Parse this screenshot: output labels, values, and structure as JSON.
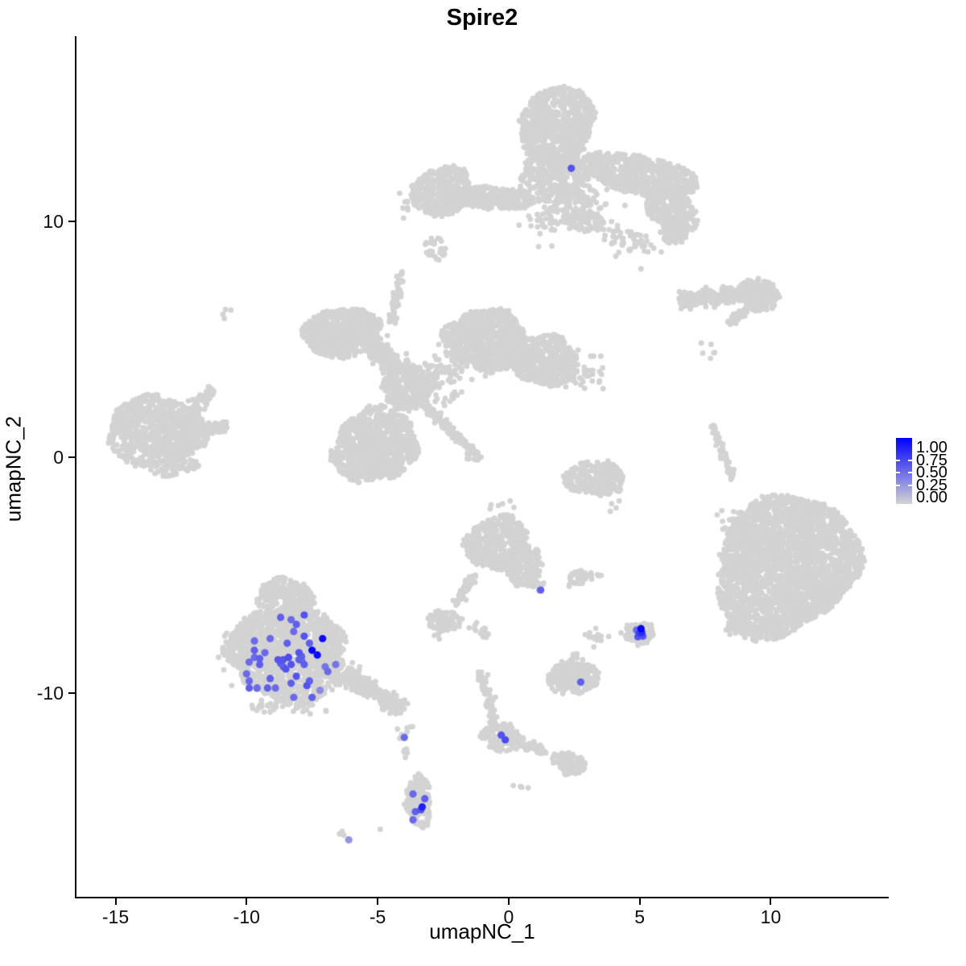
{
  "chart_data": {
    "type": "scatter",
    "title": "Spire2",
    "xlabel": "umapNC_1",
    "ylabel": "umapNC_2",
    "xlim": [
      -16.49,
      14.47
    ],
    "ylim": [
      -18.7,
      17.88
    ],
    "grid": false,
    "x_tick_values": [
      -15,
      -10,
      -5,
      0,
      5,
      10
    ],
    "x_tick_labels": [
      "-15",
      "-10",
      "-5",
      "0",
      "5",
      "10"
    ],
    "y_tick_values": [
      10,
      0,
      -10
    ],
    "y_tick_labels": [
      "10",
      "0",
      "-10"
    ],
    "colors": {
      "gray_point": "#D3D3D3",
      "low": "#D3D3D3",
      "high": "#0000FF",
      "axis": "#000000"
    },
    "legend": {
      "tick_labels": [
        "1.00",
        "0.75",
        "0.50",
        "0.25",
        "0.00"
      ],
      "tick_values": [
        1.0,
        0.75,
        0.5,
        0.25,
        0.0
      ]
    },
    "background_clusters": [
      {
        "kind": "disk",
        "cx": 1.85,
        "cy": 14.1,
        "rx": 1.5,
        "ry": 1.6,
        "rot": -12,
        "n": 750
      },
      {
        "kind": "disk",
        "cx": 1.7,
        "cy": 12.0,
        "rx": 1.35,
        "ry": 1.15,
        "rot": 0,
        "n": 300
      },
      {
        "kind": "disk",
        "cx": -2.55,
        "cy": 11.3,
        "rx": 1.2,
        "ry": 1.0,
        "rot": 12,
        "n": 380
      },
      {
        "kind": "disk",
        "cx": -0.6,
        "cy": 11.0,
        "rx": 1.55,
        "ry": 0.5,
        "rot": -4,
        "n": 240
      },
      {
        "kind": "disk",
        "cx": 5.0,
        "cy": 12.0,
        "rx": 2.2,
        "ry": 0.85,
        "rot": -14,
        "n": 620
      },
      {
        "kind": "disk",
        "cx": 6.2,
        "cy": 10.6,
        "rx": 1.1,
        "ry": 0.85,
        "rot": -48,
        "n": 260
      },
      {
        "kind": "disk",
        "cx": 6.3,
        "cy": 9.55,
        "rx": 0.55,
        "ry": 0.5,
        "rot": 0,
        "n": 80
      },
      {
        "kind": "disk",
        "cx": 2.85,
        "cy": 10.05,
        "rx": 0.8,
        "ry": 0.45,
        "rot": -12,
        "n": 100
      },
      {
        "kind": "gauss",
        "cx": 2.6,
        "cy": 10.9,
        "rx": 1.2,
        "ry": 0.6,
        "rot": 0,
        "n": 90
      },
      {
        "kind": "gauss",
        "cx": 4.6,
        "cy": 9.2,
        "rx": 0.9,
        "ry": 0.5,
        "rot": -20,
        "n": 55
      },
      {
        "kind": "gauss",
        "cx": 1.5,
        "cy": 10.1,
        "rx": 0.6,
        "ry": 0.7,
        "rot": 0,
        "n": 40
      },
      {
        "kind": "disk",
        "cx": -2.8,
        "cy": 8.85,
        "rx": 0.4,
        "ry": 0.5,
        "rot": 0,
        "n": 26
      },
      {
        "kind": "gauss",
        "cx": -3.9,
        "cy": 10.9,
        "rx": 0.3,
        "ry": 0.5,
        "rot": 0,
        "n": 8
      },
      {
        "kind": "disk",
        "cx": -6.35,
        "cy": 5.3,
        "rx": 1.55,
        "ry": 1.0,
        "rot": 14,
        "n": 650
      },
      {
        "kind": "line",
        "x1": -5.4,
        "y1": 4.9,
        "x2": -4.1,
        "y2": 3.7,
        "w": 0.4,
        "n": 220
      },
      {
        "kind": "disk",
        "cx": -3.85,
        "cy": 2.95,
        "rx": 0.95,
        "ry": 0.95,
        "rot": 0,
        "n": 280
      },
      {
        "kind": "disk",
        "cx": -5.1,
        "cy": 0.5,
        "rx": 1.65,
        "ry": 1.55,
        "rot": 0,
        "n": 850
      },
      {
        "kind": "disk",
        "cx": -0.9,
        "cy": 4.95,
        "rx": 1.55,
        "ry": 1.35,
        "rot": -18,
        "n": 850
      },
      {
        "kind": "disk",
        "cx": 1.4,
        "cy": 4.1,
        "rx": 1.35,
        "ry": 1.0,
        "rot": -12,
        "n": 500
      },
      {
        "kind": "gauss",
        "cx": -2.6,
        "cy": 3.4,
        "rx": 1.0,
        "ry": 0.9,
        "rot": 0,
        "n": 90
      },
      {
        "kind": "line",
        "x1": -3.3,
        "y1": 2.25,
        "x2": -1.45,
        "y2": 0.35,
        "w": 0.18,
        "n": 130
      },
      {
        "kind": "disk",
        "cx": -1.35,
        "cy": 0.1,
        "rx": 0.3,
        "ry": 0.28,
        "rot": 0,
        "n": 25
      },
      {
        "kind": "line",
        "x1": -4.45,
        "y1": 5.7,
        "x2": -4.1,
        "y2": 7.9,
        "w": 0.16,
        "n": 55
      },
      {
        "kind": "gauss",
        "cx": 3.0,
        "cy": 3.6,
        "rx": 0.7,
        "ry": 0.6,
        "rot": 0,
        "n": 35
      },
      {
        "kind": "disk",
        "cx": -13.45,
        "cy": 1.1,
        "rx": 1.8,
        "ry": 1.55,
        "rot": 0,
        "n": 780
      },
      {
        "kind": "line",
        "x1": -12.3,
        "y1": 1.15,
        "x2": -10.75,
        "y2": 1.3,
        "w": 0.5,
        "n": 130,
        "taper": true
      },
      {
        "kind": "line",
        "x1": -12.1,
        "y1": 1.9,
        "x2": -11.3,
        "y2": 2.9,
        "w": 0.28,
        "n": 70
      },
      {
        "kind": "disk",
        "cx": -12.8,
        "cy": -0.4,
        "rx": 0.85,
        "ry": 0.4,
        "rot": 8,
        "n": 80
      },
      {
        "kind": "gauss",
        "cx": -10.9,
        "cy": 6.0,
        "rx": 0.25,
        "ry": 0.3,
        "rot": 0,
        "n": 3
      },
      {
        "kind": "line",
        "x1": 6.5,
        "y1": 6.6,
        "x2": 8.85,
        "y2": 6.95,
        "w": 0.32,
        "n": 230
      },
      {
        "kind": "disk",
        "cx": 9.55,
        "cy": 6.9,
        "rx": 0.8,
        "ry": 0.65,
        "rot": -15,
        "n": 200
      },
      {
        "kind": "line",
        "x1": 8.35,
        "y1": 5.75,
        "x2": 9.2,
        "y2": 6.35,
        "w": 0.2,
        "n": 45
      },
      {
        "kind": "gauss",
        "cx": 7.7,
        "cy": 4.6,
        "rx": 0.35,
        "ry": 0.4,
        "rot": 0,
        "n": 5
      },
      {
        "kind": "line",
        "x1": 7.75,
        "y1": 1.4,
        "x2": 8.55,
        "y2": -1.0,
        "w": 0.15,
        "n": 55
      },
      {
        "kind": "gauss",
        "cx": 8.6,
        "cy": -2.7,
        "rx": 0.6,
        "ry": 1.0,
        "rot": 0,
        "n": 10
      },
      {
        "kind": "disk",
        "cx": 10.6,
        "cy": -4.55,
        "rx": 2.75,
        "ry": 2.9,
        "rot": 0,
        "n": 2500
      },
      {
        "kind": "line",
        "x1": 8.4,
        "y1": -7.0,
        "x2": 9.6,
        "y2": -7.5,
        "w": 0.35,
        "n": 110
      },
      {
        "kind": "gauss",
        "cx": 8.4,
        "cy": -4.3,
        "rx": 0.45,
        "ry": 1.6,
        "rot": 0,
        "n": 22
      },
      {
        "kind": "disk",
        "cx": -0.45,
        "cy": -3.65,
        "rx": 1.2,
        "ry": 1.15,
        "rot": 0,
        "n": 420
      },
      {
        "kind": "disk",
        "cx": 0.55,
        "cy": -4.6,
        "rx": 0.8,
        "ry": 0.85,
        "rot": 0,
        "n": 160
      },
      {
        "kind": "line",
        "x1": -0.1,
        "y1": -3.1,
        "x2": 0.6,
        "y2": -3.3,
        "w": 0.2,
        "n": 35
      },
      {
        "kind": "line",
        "x1": 0.7,
        "y1": -4.9,
        "x2": 1.18,
        "y2": -5.65,
        "w": 0.22,
        "n": 45
      },
      {
        "kind": "line",
        "x1": -1.35,
        "y1": -4.95,
        "x2": -2.0,
        "y2": -6.3,
        "w": 0.2,
        "n": 45
      },
      {
        "kind": "disk",
        "cx": -2.45,
        "cy": -6.95,
        "rx": 0.65,
        "ry": 0.45,
        "rot": -10,
        "n": 110
      },
      {
        "kind": "gauss",
        "cx": -2.75,
        "cy": -7.6,
        "rx": 0.15,
        "ry": 0.15,
        "rot": 0,
        "n": 4
      },
      {
        "kind": "gauss",
        "cx": -1.1,
        "cy": -7.2,
        "rx": 0.35,
        "ry": 0.15,
        "rot": 0,
        "n": 5
      },
      {
        "kind": "disk",
        "cx": -0.95,
        "cy": -7.5,
        "rx": 0.18,
        "ry": 0.25,
        "rot": 0,
        "n": 10
      },
      {
        "kind": "disk",
        "cx": 3.3,
        "cy": -0.9,
        "rx": 1.15,
        "ry": 0.75,
        "rot": -10,
        "n": 230
      },
      {
        "kind": "gauss",
        "cx": 4.0,
        "cy": -2.1,
        "rx": 0.2,
        "ry": 0.2,
        "rot": 0,
        "n": 3
      },
      {
        "kind": "disk",
        "cx": 2.8,
        "cy": -5.1,
        "rx": 0.5,
        "ry": 0.32,
        "rot": 0,
        "n": 40
      },
      {
        "kind": "gauss",
        "cx": 2.3,
        "cy": -5.35,
        "rx": 0.15,
        "ry": 0.15,
        "rot": 0,
        "n": 3
      },
      {
        "kind": "gauss",
        "cx": 3.45,
        "cy": -5.0,
        "rx": 0.15,
        "ry": 0.15,
        "rot": 0,
        "n": 3
      },
      {
        "kind": "disk",
        "cx": 5.0,
        "cy": -7.45,
        "rx": 0.5,
        "ry": 0.55,
        "rot": 0,
        "n": 70
      },
      {
        "kind": "gauss",
        "cx": 4.5,
        "cy": -7.55,
        "rx": 0.25,
        "ry": 0.18,
        "rot": 0,
        "n": 12
      },
      {
        "kind": "gauss",
        "cx": 3.35,
        "cy": -7.6,
        "rx": 0.4,
        "ry": 0.35,
        "rot": 0,
        "n": 16
      },
      {
        "kind": "disk",
        "cx": 2.45,
        "cy": -9.35,
        "rx": 0.95,
        "ry": 0.75,
        "rot": -10,
        "n": 240
      },
      {
        "kind": "gauss",
        "cx": 2.6,
        "cy": -8.5,
        "rx": 0.3,
        "ry": 0.2,
        "rot": 0,
        "n": 6
      },
      {
        "kind": "disk",
        "cx": -0.3,
        "cy": -11.9,
        "rx": 0.75,
        "ry": 0.6,
        "rot": 15,
        "n": 140
      },
      {
        "kind": "line",
        "x1": -0.55,
        "y1": -11.3,
        "x2": -1.0,
        "y2": -9.45,
        "w": 0.17,
        "n": 55
      },
      {
        "kind": "disk",
        "cx": -1.0,
        "cy": -9.3,
        "rx": 0.24,
        "ry": 0.24,
        "rot": 0,
        "n": 15
      },
      {
        "kind": "line",
        "x1": 0.2,
        "y1": -12.05,
        "x2": 1.45,
        "y2": -12.5,
        "w": 0.2,
        "n": 55
      },
      {
        "kind": "disk",
        "cx": 2.3,
        "cy": -13.0,
        "rx": 0.65,
        "ry": 0.48,
        "rot": -28,
        "n": 90
      },
      {
        "kind": "gauss",
        "cx": -4.05,
        "cy": -11.6,
        "rx": 0.3,
        "ry": 0.3,
        "rot": 0,
        "n": 8
      },
      {
        "kind": "gauss",
        "cx": -3.95,
        "cy": -12.6,
        "rx": 0.15,
        "ry": 0.5,
        "rot": 0,
        "n": 5
      },
      {
        "kind": "disk",
        "cx": -3.45,
        "cy": -14.6,
        "rx": 0.52,
        "ry": 1.1,
        "rot": 8,
        "n": 170
      },
      {
        "kind": "gauss",
        "cx": 0.55,
        "cy": -14.05,
        "rx": 0.25,
        "ry": 0.2,
        "rot": 0,
        "n": 4
      },
      {
        "kind": "gauss",
        "cx": -6.25,
        "cy": -16.05,
        "rx": 0.15,
        "ry": 0.18,
        "rot": 0,
        "n": 3
      },
      {
        "kind": "gauss",
        "cx": -0.4,
        "cy": -2.0,
        "rx": 0.8,
        "ry": 0.6,
        "rot": 0,
        "n": 8
      },
      {
        "kind": "disk",
        "cx": -8.4,
        "cy": -8.35,
        "rx": 2.45,
        "ry": 1.9,
        "rot": 4,
        "n": 1500
      },
      {
        "kind": "disk",
        "cx": -8.55,
        "cy": -5.95,
        "rx": 1.05,
        "ry": 0.8,
        "rot": -8,
        "n": 280
      },
      {
        "kind": "line",
        "x1": -6.3,
        "y1": -9.2,
        "x2": -4.3,
        "y2": -10.5,
        "w": 0.5,
        "n": 300,
        "taper": true
      },
      {
        "kind": "disk",
        "cx": -4.35,
        "cy": -10.5,
        "rx": 0.55,
        "ry": 0.42,
        "rot": -20,
        "n": 70
      },
      {
        "kind": "gauss",
        "cx": -8.5,
        "cy": -10.6,
        "rx": 1.5,
        "ry": 0.3,
        "rot": 0,
        "n": 40
      },
      {
        "kind": "gauss",
        "cx": -10.6,
        "cy": -8.3,
        "rx": 0.3,
        "ry": 0.8,
        "rot": 0,
        "n": 15
      }
    ],
    "extra_gray_points": [
      [
        -10.6,
        6.25
      ],
      [
        5.05,
        8.0
      ],
      [
        8.45,
        5.65
      ],
      [
        7.35,
        4.85
      ],
      [
        4.1,
        -2.15
      ],
      [
        -4.9,
        -15.8
      ]
    ],
    "expression_points": [
      [
        2.39,
        12.27,
        0.6
      ],
      [
        1.22,
        -5.64,
        0.55
      ],
      [
        4.88,
        -7.34,
        0.5
      ],
      [
        5.08,
        -7.44,
        0.8
      ],
      [
        4.98,
        -7.48,
        0.7
      ],
      [
        5.12,
        -7.6,
        0.6
      ],
      [
        4.93,
        -7.62,
        0.6
      ],
      [
        5.05,
        -7.28,
        1.0
      ],
      [
        2.75,
        -9.55,
        0.55
      ],
      [
        -0.28,
        -11.8,
        0.6
      ],
      [
        -0.13,
        -12.0,
        0.65
      ],
      [
        -3.98,
        -11.9,
        0.5
      ],
      [
        -3.65,
        -14.3,
        0.5
      ],
      [
        -3.2,
        -14.5,
        0.55
      ],
      [
        -3.35,
        -14.97,
        0.6
      ],
      [
        -3.3,
        -14.85,
        0.85
      ],
      [
        -3.56,
        -15.05,
        0.55
      ],
      [
        -3.65,
        -15.4,
        0.5
      ],
      [
        -6.1,
        -16.25,
        0.3
      ],
      [
        -8.7,
        -6.8,
        0.55
      ],
      [
        -7.8,
        -6.7,
        0.6
      ],
      [
        -8.3,
        -6.9,
        0.5
      ],
      [
        -8.1,
        -7.1,
        0.55
      ],
      [
        -8.2,
        -7.4,
        0.5
      ],
      [
        -7.8,
        -7.6,
        0.6
      ],
      [
        -7.1,
        -7.7,
        0.95
      ],
      [
        -7.6,
        -7.9,
        0.55
      ],
      [
        -7.5,
        -8.2,
        1.0
      ],
      [
        -7.3,
        -8.4,
        0.95
      ],
      [
        -9.7,
        -7.8,
        0.5
      ],
      [
        -9.7,
        -8.2,
        0.55
      ],
      [
        -9.1,
        -7.7,
        0.5
      ],
      [
        -8.0,
        -8.3,
        0.6
      ],
      [
        -7.9,
        -8.45,
        0.55
      ],
      [
        -9.7,
        -8.5,
        0.5
      ],
      [
        -9.5,
        -8.55,
        0.55
      ],
      [
        -9.9,
        -8.7,
        0.5
      ],
      [
        -9.5,
        -8.8,
        0.55
      ],
      [
        -8.8,
        -8.6,
        0.6
      ],
      [
        -8.7,
        -8.75,
        0.55
      ],
      [
        -8.6,
        -8.6,
        0.6
      ],
      [
        -8.4,
        -8.5,
        0.65
      ],
      [
        -8.3,
        -8.8,
        0.6
      ],
      [
        -8.6,
        -8.9,
        0.55
      ],
      [
        -8.5,
        -9.0,
        0.6
      ],
      [
        -8.0,
        -8.6,
        0.55
      ],
      [
        -7.9,
        -8.62,
        0.5
      ],
      [
        -7.8,
        -8.8,
        0.55
      ],
      [
        -10.0,
        -9.2,
        0.5
      ],
      [
        -9.1,
        -9.4,
        0.55
      ],
      [
        -8.1,
        -9.3,
        0.6
      ],
      [
        -7.6,
        -9.5,
        0.55
      ],
      [
        -9.9,
        -9.5,
        0.5
      ],
      [
        -9.9,
        -9.8,
        0.55
      ],
      [
        -9.6,
        -9.8,
        0.5
      ],
      [
        -9.2,
        -9.8,
        0.55
      ],
      [
        -8.9,
        -9.8,
        0.5
      ],
      [
        -8.3,
        -9.6,
        0.55
      ],
      [
        -7.7,
        -9.7,
        0.6
      ],
      [
        -7.5,
        -10.2,
        0.55
      ],
      [
        -8.2,
        -10.2,
        0.5
      ],
      [
        -7.0,
        -8.9,
        0.45
      ],
      [
        -6.9,
        -9.1,
        0.5
      ],
      [
        -6.6,
        -8.8,
        0.45
      ],
      [
        -7.2,
        -9.9,
        0.35
      ],
      [
        -8.45,
        -7.9,
        0.55
      ],
      [
        -9.3,
        -8.3,
        0.5
      ]
    ]
  }
}
